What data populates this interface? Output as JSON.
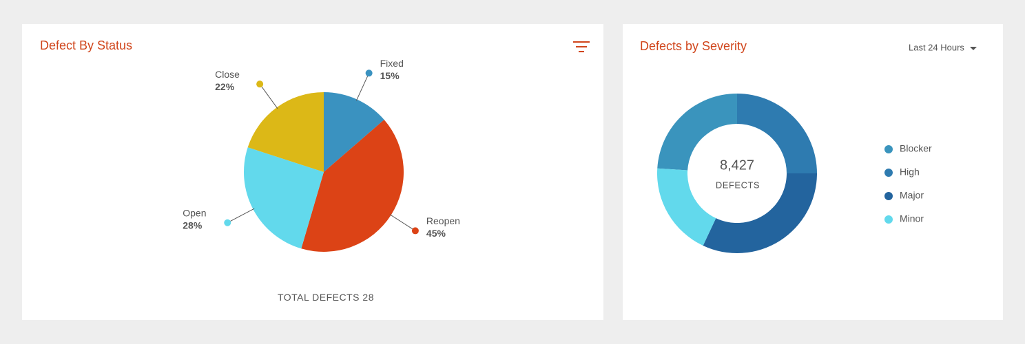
{
  "chart_data": [
    {
      "type": "pie",
      "title": "Defect By Status",
      "categories": [
        "Fixed",
        "Reopen",
        "Open",
        "Close"
      ],
      "values": [
        15,
        45,
        28,
        22
      ],
      "value_labels": [
        "15%",
        "45%",
        "28%",
        "22%"
      ],
      "colors": [
        "#3a92c0",
        "#dc4316",
        "#62d9ec",
        "#dcb817"
      ],
      "footer_label": "TOTAL DEFECTS",
      "total": 28
    },
    {
      "type": "donut",
      "title": "Defects by Severity",
      "period": "Last 24 Hours",
      "categories": [
        "Blocker",
        "High",
        "Major",
        "Minor"
      ],
      "values": [
        24,
        25,
        32,
        19
      ],
      "colors": [
        "#3a94bd",
        "#2e7bb0",
        "#23649e",
        "#62d9ec"
      ],
      "total": {
        "value": 8427,
        "label": "8,427"
      },
      "total_label": "DEFECTS",
      "legend": "right"
    }
  ]
}
